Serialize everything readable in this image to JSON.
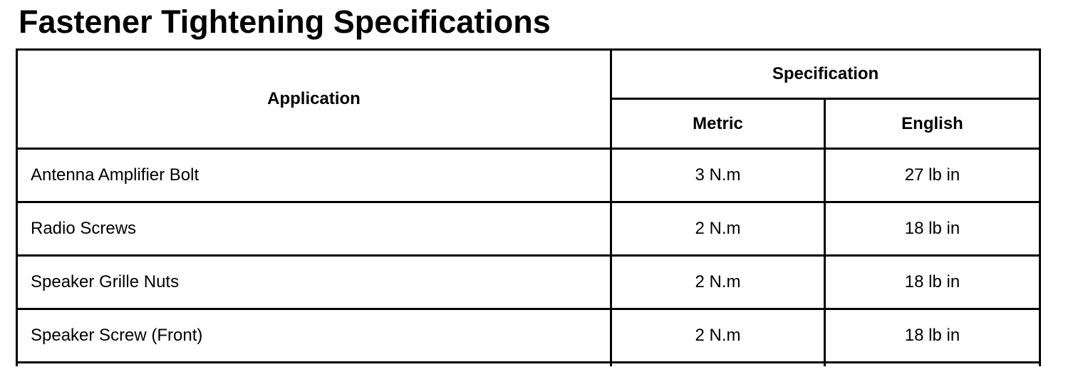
{
  "title": "Fastener Tightening Specifications",
  "table": {
    "headers": {
      "application": "Application",
      "specification": "Specification",
      "metric": "Metric",
      "english": "English"
    },
    "rows": [
      {
        "application": "Antenna Amplifier Bolt",
        "metric": "3 N.m",
        "english": "27 lb in"
      },
      {
        "application": "Radio Screws",
        "metric": "2 N.m",
        "english": "18 lb in"
      },
      {
        "application": "Speaker Grille Nuts",
        "metric": "2 N.m",
        "english": "18 lb in"
      },
      {
        "application": "Speaker Screw (Front)",
        "metric": "2 N.m",
        "english": "18 lb in"
      }
    ]
  }
}
